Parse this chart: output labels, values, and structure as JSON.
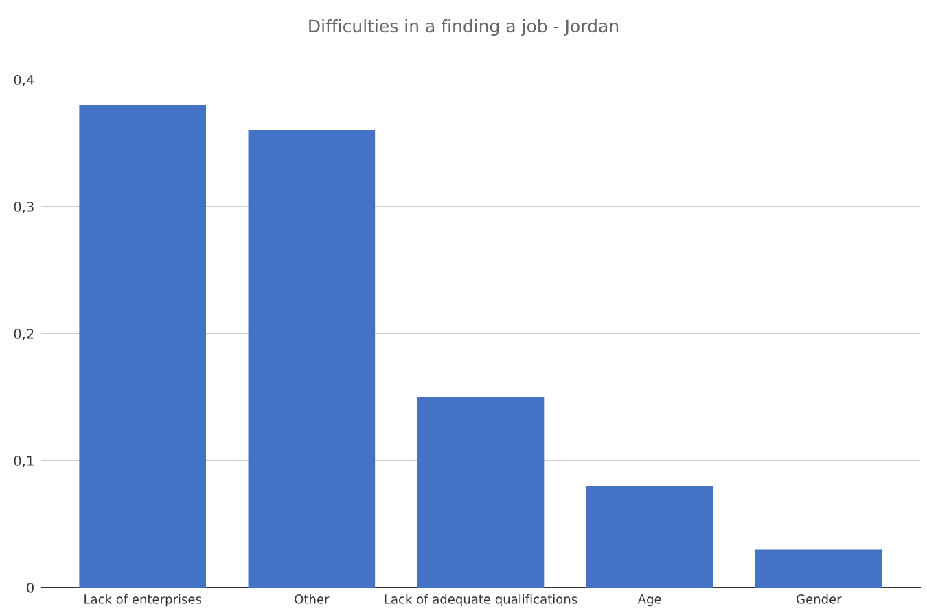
{
  "chart_data": {
    "type": "bar",
    "title": "Difficulties in a finding a job - Jordan",
    "categories": [
      "Lack of enterprises",
      "Other",
      "Lack of adequate qualifications",
      "Age",
      "Gender"
    ],
    "values": [
      0.38,
      0.36,
      0.15,
      0.08,
      0.03
    ],
    "color": "#4472c4",
    "ylim": [
      0,
      0.4
    ],
    "yticks": [
      {
        "value": 0,
        "label": "0"
      },
      {
        "value": 0.1,
        "label": "0,1"
      },
      {
        "value": 0.2,
        "label": "0,2"
      },
      {
        "value": 0.3,
        "label": "0,3"
      },
      {
        "value": 0.4,
        "label": "0,4"
      }
    ],
    "grid": "y",
    "legend": false
  }
}
